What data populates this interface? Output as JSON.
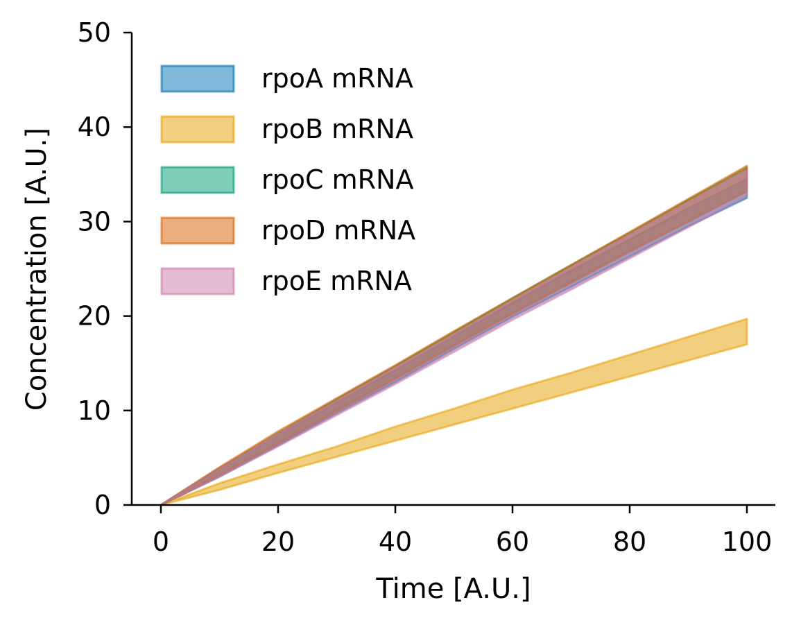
{
  "chart_data": {
    "type": "area",
    "title": "",
    "xlabel": "Time [A.U.]",
    "ylabel": "Concentration [A.U.]",
    "xlim": [
      -5,
      105
    ],
    "ylim": [
      0,
      50
    ],
    "xticks": [
      0,
      20,
      40,
      60,
      80,
      100
    ],
    "yticks": [
      0,
      10,
      20,
      30,
      40,
      50
    ],
    "grid": false,
    "legend_position": "top-left",
    "x": [
      0,
      10,
      20,
      30,
      40,
      50,
      60,
      70,
      80,
      90,
      100
    ],
    "series": [
      {
        "name": "rpoA mRNA",
        "color": "#0072B2",
        "lower": [
          0,
          3.0,
          6.3,
          9.7,
          13.0,
          16.5,
          19.9,
          23.1,
          26.3,
          29.5,
          32.5
        ],
        "upper": [
          0,
          3.8,
          7.4,
          10.9,
          14.3,
          17.9,
          21.4,
          24.8,
          28.1,
          31.4,
          34.5
        ]
      },
      {
        "name": "rpoB mRNA",
        "color": "#E69F00",
        "lower": [
          0,
          1.6,
          3.4,
          5.1,
          6.8,
          8.5,
          10.2,
          11.9,
          13.6,
          15.3,
          17.0
        ],
        "upper": [
          0,
          2.3,
          4.3,
          6.2,
          8.3,
          10.2,
          12.2,
          14.0,
          15.9,
          17.8,
          19.7
        ]
      },
      {
        "name": "rpoC mRNA",
        "color": "#009E73",
        "lower": [
          0,
          3.1,
          6.5,
          10.0,
          13.4,
          16.9,
          20.3,
          23.6,
          26.9,
          30.0,
          33.2
        ],
        "upper": [
          0,
          3.9,
          7.6,
          11.2,
          14.7,
          18.3,
          21.9,
          25.4,
          28.8,
          32.3,
          35.7
        ]
      },
      {
        "name": "rpoD mRNA",
        "color": "#D55E00",
        "lower": [
          0,
          3.1,
          6.5,
          9.9,
          13.3,
          16.8,
          20.2,
          23.5,
          26.8,
          30.0,
          33.2
        ],
        "upper": [
          0,
          4.0,
          7.8,
          11.3,
          14.8,
          18.4,
          21.9,
          25.4,
          28.9,
          32.4,
          35.9
        ]
      },
      {
        "name": "rpoE mRNA",
        "color": "#CC79A7",
        "lower": [
          0,
          3.0,
          6.2,
          9.5,
          12.8,
          16.2,
          19.6,
          22.8,
          26.1,
          29.4,
          32.7
        ],
        "upper": [
          0,
          3.8,
          7.5,
          11.0,
          14.5,
          18.0,
          21.6,
          25.1,
          28.6,
          32.0,
          35.4
        ]
      }
    ]
  }
}
